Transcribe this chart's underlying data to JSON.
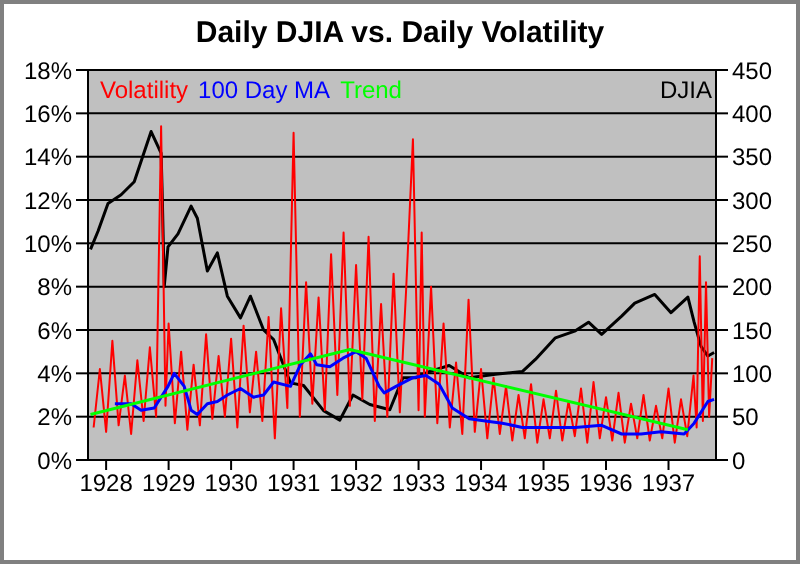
{
  "chart_data": {
    "type": "line",
    "title": "Daily DJIA vs. Daily Volatility",
    "xlim": [
      1927.71,
      1937.76
    ],
    "xticks": [
      1928,
      1929,
      1930,
      1931,
      1932,
      1933,
      1934,
      1935,
      1936,
      1937
    ],
    "ylim": [
      0,
      18
    ],
    "yticks": [
      {
        "value": 0,
        "label": "0%"
      },
      {
        "value": 2,
        "label": "2%"
      },
      {
        "value": 4,
        "label": "4%"
      },
      {
        "value": 6,
        "label": "6%"
      },
      {
        "value": 8,
        "label": "8%"
      },
      {
        "value": 10,
        "label": "10%"
      },
      {
        "value": 12,
        "label": "12%"
      },
      {
        "value": 14,
        "label": "14%"
      },
      {
        "value": 16,
        "label": "16%"
      },
      {
        "value": 18,
        "label": "18%"
      }
    ],
    "y2lim": [
      0,
      450
    ],
    "y2ticks": [
      0,
      50,
      100,
      150,
      200,
      250,
      300,
      350,
      400,
      450
    ],
    "grid": "y",
    "legend": "top",
    "marker": "none",
    "series": [
      {
        "name": "Volatility",
        "color": "#ff0000",
        "x": [
          1927.8,
          1927.9,
          1928.0,
          1928.1,
          1928.2,
          1928.3,
          1928.4,
          1928.5,
          1928.6,
          1928.7,
          1928.8,
          1928.88,
          1928.95,
          1929.0,
          1929.1,
          1929.2,
          1929.3,
          1929.4,
          1929.5,
          1929.6,
          1929.7,
          1929.8,
          1929.9,
          1930.0,
          1930.1,
          1930.2,
          1930.3,
          1930.4,
          1930.5,
          1930.6,
          1930.7,
          1930.8,
          1930.9,
          1931.0,
          1931.1,
          1931.2,
          1931.3,
          1931.4,
          1931.5,
          1931.6,
          1931.7,
          1931.8,
          1931.9,
          1932.0,
          1932.1,
          1932.2,
          1932.3,
          1932.4,
          1932.5,
          1932.6,
          1932.7,
          1932.8,
          1932.91,
          1933.0,
          1933.05,
          1933.1,
          1933.2,
          1933.3,
          1933.4,
          1933.5,
          1933.6,
          1933.7,
          1933.8,
          1933.9,
          1934.0,
          1934.1,
          1934.2,
          1934.3,
          1934.4,
          1934.5,
          1934.6,
          1934.7,
          1934.8,
          1934.9,
          1935.0,
          1935.1,
          1935.2,
          1935.3,
          1935.4,
          1935.5,
          1935.6,
          1935.7,
          1935.8,
          1935.9,
          1936.0,
          1936.1,
          1936.2,
          1936.3,
          1936.4,
          1936.5,
          1936.6,
          1936.7,
          1936.8,
          1936.9,
          1937.0,
          1937.1,
          1937.2,
          1937.3,
          1937.4,
          1937.45,
          1937.5,
          1937.55,
          1937.6,
          1937.65,
          1937.7
        ],
        "values": [
          1.5,
          4.2,
          1.3,
          5.5,
          1.6,
          3.9,
          1.2,
          4.6,
          1.8,
          5.2,
          2.0,
          15.4,
          2.5,
          6.3,
          1.7,
          5.0,
          1.4,
          4.4,
          1.6,
          5.8,
          1.9,
          4.8,
          2.0,
          5.6,
          1.5,
          6.2,
          2.2,
          5.0,
          1.8,
          6.6,
          1.0,
          7.0,
          2.4,
          15.1,
          2.0,
          8.2,
          2.6,
          7.5,
          2.3,
          9.5,
          3.0,
          10.5,
          2.5,
          9.0,
          2.8,
          10.3,
          1.8,
          7.2,
          2.0,
          8.6,
          2.2,
          7.8,
          14.8,
          2.3,
          10.5,
          2.0,
          8.0,
          1.7,
          6.3,
          1.5,
          4.5,
          1.2,
          7.4,
          1.3,
          4.2,
          1.0,
          3.8,
          1.2,
          3.4,
          0.9,
          3.0,
          1.0,
          3.5,
          0.8,
          2.8,
          1.0,
          3.2,
          0.9,
          2.7,
          1.1,
          3.3,
          0.8,
          3.6,
          1.0,
          2.9,
          0.9,
          3.1,
          0.8,
          2.6,
          1.0,
          3.0,
          0.9,
          2.5,
          1.0,
          3.3,
          0.8,
          2.8,
          1.1,
          3.9,
          1.5,
          9.4,
          1.8,
          8.2,
          2.0,
          4.7
        ]
      },
      {
        "name": "100 Day MA",
        "color": "#0000ff",
        "x": [
          1928.14,
          1928.4,
          1928.56,
          1928.77,
          1928.99,
          1929.09,
          1929.25,
          1929.36,
          1929.46,
          1929.62,
          1929.78,
          1929.94,
          1930.15,
          1930.36,
          1930.52,
          1930.68,
          1930.95,
          1931.11,
          1931.27,
          1931.37,
          1931.58,
          1931.79,
          1932.0,
          1932.16,
          1932.37,
          1932.45,
          1932.64,
          1932.91,
          1933.12,
          1933.33,
          1933.54,
          1933.81,
          1934.07,
          1934.34,
          1934.66,
          1935.08,
          1935.51,
          1935.93,
          1936.25,
          1936.56,
          1936.88,
          1937.25,
          1937.41,
          1937.63,
          1937.73
        ],
        "values": [
          2.6,
          2.6,
          2.3,
          2.4,
          3.4,
          4.0,
          3.4,
          2.3,
          2.1,
          2.6,
          2.7,
          3.0,
          3.3,
          2.9,
          3.0,
          3.6,
          3.4,
          4.4,
          4.9,
          4.4,
          4.3,
          4.7,
          5.0,
          4.7,
          3.4,
          3.1,
          3.4,
          3.8,
          3.9,
          3.5,
          2.4,
          1.9,
          1.8,
          1.7,
          1.5,
          1.5,
          1.5,
          1.6,
          1.2,
          1.2,
          1.3,
          1.2,
          1.7,
          2.7,
          2.8
        ]
      },
      {
        "name": "Trend",
        "color": "#00ff00",
        "x": [
          1927.75,
          1931.9,
          1937.31
        ],
        "values": [
          2.1,
          5.1,
          1.4
        ]
      },
      {
        "name": "DJIA",
        "color": "#000000",
        "axis": "y2",
        "x": [
          1927.75,
          1927.87,
          1928.03,
          1928.24,
          1928.45,
          1928.72,
          1928.88,
          1928.9,
          1928.93,
          1928.99,
          1929.15,
          1929.36,
          1929.46,
          1929.62,
          1929.78,
          1929.94,
          1930.15,
          1930.31,
          1930.52,
          1930.68,
          1930.95,
          1931.16,
          1931.48,
          1931.74,
          1931.95,
          1932.22,
          1932.54,
          1932.75,
          1932.96,
          1933.17,
          1933.49,
          1933.81,
          1934.23,
          1934.66,
          1934.87,
          1935.19,
          1935.51,
          1935.72,
          1935.93,
          1936.25,
          1936.46,
          1936.78,
          1937.04,
          1937.31,
          1937.41,
          1937.52,
          1937.63,
          1937.73
        ],
        "values": [
          243,
          264,
          296,
          306,
          321,
          379,
          354,
          300,
          200,
          246,
          261,
          293,
          279,
          218,
          239,
          189,
          164,
          189,
          150,
          139,
          89,
          86,
          57,
          46,
          75,
          64,
          58,
          95,
          95,
          102,
          109,
          95,
          99,
          102,
          116,
          141,
          149,
          159,
          145,
          166,
          181,
          191,
          170,
          188,
          159,
          131,
          120,
          124
        ]
      }
    ]
  }
}
